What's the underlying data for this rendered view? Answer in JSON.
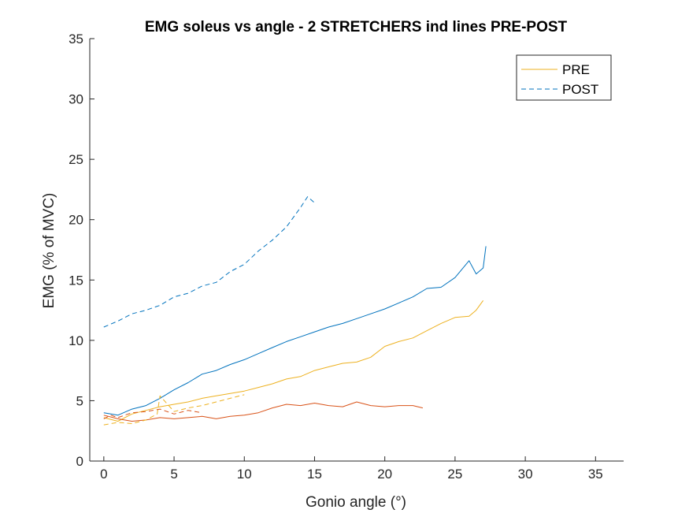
{
  "chart_data": {
    "type": "line",
    "title": "EMG soleus vs angle - 2 STRETCHERS ind lines PRE-POST",
    "xlabel": "Gonio angle (°)",
    "ylabel": "EMG (% of MVC)",
    "xlim": [
      -1,
      37
    ],
    "ylim": [
      0,
      35
    ],
    "xticks": [
      0,
      5,
      10,
      15,
      20,
      25,
      30,
      35
    ],
    "yticks": [
      0,
      5,
      10,
      15,
      20,
      25,
      30,
      35
    ],
    "grid": false,
    "legend": {
      "placement": "top-right",
      "entries": [
        {
          "label": "PRE",
          "style": "solid",
          "color": "#EDB120"
        },
        {
          "label": "POST",
          "style": "dashed",
          "color": "#0072BD"
        }
      ]
    },
    "series": [
      {
        "style": "dashed",
        "color": "#0072BD",
        "x": [
          0,
          1,
          2,
          3,
          4,
          5,
          6,
          7,
          8,
          9,
          10,
          11,
          12,
          13,
          14,
          14.5,
          15
        ],
        "y": [
          11.1,
          11.6,
          12.2,
          12.5,
          12.9,
          13.6,
          13.9,
          14.5,
          14.8,
          15.7,
          16.3,
          17.4,
          18.3,
          19.4,
          21.0,
          21.9,
          21.4
        ]
      },
      {
        "style": "solid",
        "color": "#0072BD",
        "x": [
          0,
          1,
          2,
          3,
          4,
          5,
          6,
          7,
          8,
          9,
          10,
          11,
          12,
          13,
          14,
          15,
          16,
          17,
          18,
          19,
          20,
          21,
          22,
          23,
          24,
          25,
          26,
          26.5,
          27,
          27.2
        ],
        "y": [
          4.0,
          3.8,
          4.3,
          4.6,
          5.2,
          5.9,
          6.5,
          7.2,
          7.5,
          8.0,
          8.4,
          8.9,
          9.4,
          9.9,
          10.3,
          10.7,
          11.1,
          11.4,
          11.8,
          12.2,
          12.6,
          13.1,
          13.6,
          14.3,
          14.4,
          15.2,
          16.6,
          15.5,
          16.0,
          17.8
        ]
      },
      {
        "style": "solid",
        "color": "#EDB120",
        "x": [
          0,
          1,
          2,
          3,
          4,
          5,
          6,
          7,
          8,
          9,
          10,
          11,
          12,
          13,
          14,
          15,
          16,
          17,
          18,
          19,
          20,
          21,
          22,
          23,
          24,
          25,
          26,
          26.5,
          27
        ],
        "y": [
          3.6,
          3.3,
          3.9,
          4.2,
          4.5,
          4.7,
          4.9,
          5.2,
          5.4,
          5.6,
          5.8,
          6.1,
          6.4,
          6.8,
          7.0,
          7.5,
          7.8,
          8.1,
          8.2,
          8.6,
          9.5,
          9.9,
          10.2,
          10.8,
          11.4,
          11.9,
          12.0,
          12.5,
          13.3
        ]
      },
      {
        "style": "solid",
        "color": "#D95319",
        "x": [
          0,
          1,
          2,
          3,
          4,
          5,
          6,
          7,
          8,
          9,
          10,
          11,
          12,
          13,
          14,
          15,
          16,
          17,
          18,
          19,
          20,
          21,
          22,
          22.7
        ],
        "y": [
          3.8,
          3.5,
          3.3,
          3.4,
          3.6,
          3.5,
          3.6,
          3.7,
          3.5,
          3.7,
          3.8,
          4.0,
          4.4,
          4.7,
          4.6,
          4.8,
          4.6,
          4.5,
          4.9,
          4.6,
          4.5,
          4.6,
          4.6,
          4.4
        ]
      },
      {
        "style": "dashed",
        "color": "#EDB120",
        "x": [
          0,
          1,
          2,
          3,
          3.8,
          4,
          5,
          6,
          7,
          8,
          9,
          10
        ],
        "y": [
          3.0,
          3.2,
          3.1,
          3.4,
          3.9,
          5.4,
          4.1,
          4.4,
          4.6,
          4.9,
          5.2,
          5.5
        ]
      },
      {
        "style": "dashed",
        "color": "#D95319",
        "x": [
          0,
          0.5,
          1,
          2,
          3,
          4,
          5,
          6,
          7
        ],
        "y": [
          3.5,
          3.8,
          3.6,
          4.0,
          4.1,
          4.3,
          3.9,
          4.2,
          4.0
        ]
      }
    ]
  }
}
